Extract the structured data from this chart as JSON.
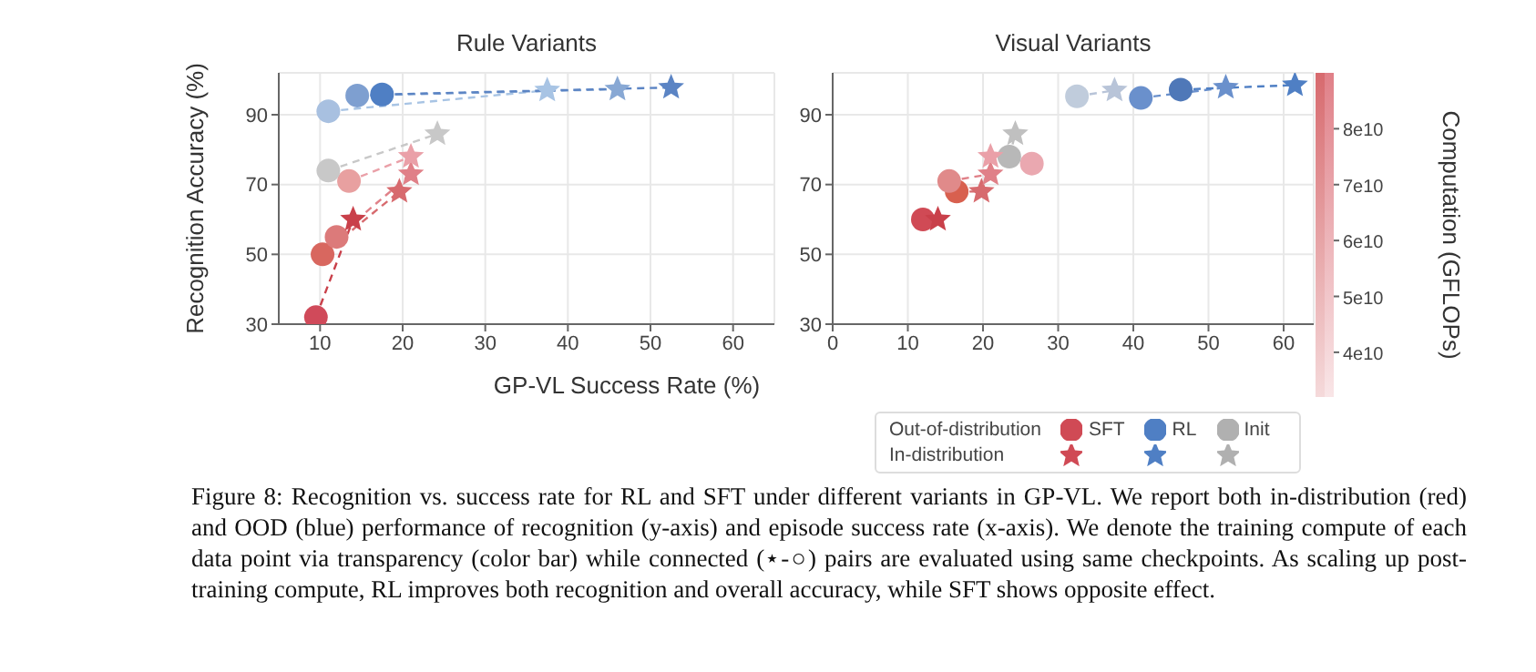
{
  "chart_data": [
    {
      "type": "scatter",
      "title": "Rule Variants",
      "xlabel": "GP-VL Success Rate (%)",
      "ylabel": "Recognition Accuracy (%)",
      "xlim": [
        5,
        65
      ],
      "xticks": [
        10,
        20,
        30,
        40,
        50,
        60
      ],
      "ylim": [
        30,
        102
      ],
      "yticks": [
        30,
        50,
        70,
        90
      ],
      "grid": true,
      "line_style": "dashed",
      "series": [
        {
          "type": "line",
          "color": "#c9404a",
          "x": [
            9.5,
            14
          ],
          "values": [
            32,
            60
          ]
        },
        {
          "type": "line",
          "color": "#d76a6e",
          "x": [
            10.3,
            19.6
          ],
          "values": [
            50,
            68
          ]
        },
        {
          "type": "line",
          "color": "#e08088",
          "x": [
            12,
            21
          ],
          "values": [
            55,
            73
          ]
        },
        {
          "type": "line",
          "color": "#eaa0a8",
          "x": [
            13.5,
            21
          ],
          "values": [
            71,
            78
          ]
        },
        {
          "type": "line",
          "color": "#a8c4e4",
          "x": [
            11,
            37.5
          ],
          "values": [
            91,
            97
          ]
        },
        {
          "type": "line",
          "color": "#88a8d4",
          "x": [
            14.5,
            46
          ],
          "values": [
            95.5,
            97.3
          ]
        },
        {
          "type": "line",
          "color": "#5b84c4",
          "x": [
            17.5,
            52.5
          ],
          "values": [
            95.8,
            97.8
          ]
        },
        {
          "type": "line",
          "color": "#c8c8c8",
          "x": [
            11,
            24.2
          ],
          "values": [
            74,
            84.5
          ]
        },
        {
          "color": "#d04a55",
          "marker": "circle",
          "x": [
            9.5,
            10.3,
            12,
            13.5
          ],
          "values": [
            32,
            50,
            55,
            71
          ],
          "colors": [
            "#d04a5a",
            "#d8675f",
            "#dc7a7a",
            "#e8a0a0"
          ]
        },
        {
          "color": "#4f7fc4",
          "marker": "circle",
          "x": [
            11,
            14.5,
            17.5
          ],
          "values": [
            91,
            95.5,
            95.8
          ],
          "colors": [
            "#a8c0e0",
            "#7e9fd0",
            "#4f7fc4"
          ]
        },
        {
          "color": "#b0b0b0",
          "marker": "circle",
          "x": [
            11
          ],
          "values": [
            74
          ],
          "colors": [
            "#c8c8c8"
          ]
        },
        {
          "color": "#d04a55",
          "marker": "star",
          "x": [
            14,
            19.6,
            21,
            21
          ],
          "values": [
            60,
            68,
            73,
            78
          ],
          "colors": [
            "#c9404a",
            "#d76a6e",
            "#e08088",
            "#eaa0a8"
          ]
        },
        {
          "color": "#4f7fc4",
          "marker": "star",
          "x": [
            37.5,
            46,
            52.5
          ],
          "values": [
            97,
            97.3,
            97.8
          ],
          "colors": [
            "#a8c4e4",
            "#88a8d4",
            "#5b84c4"
          ]
        },
        {
          "color": "#b0b0b0",
          "marker": "star",
          "x": [
            24.2
          ],
          "values": [
            84.5
          ],
          "colors": [
            "#c8c8c8"
          ]
        }
      ]
    },
    {
      "type": "scatter",
      "title": "Visual Variants",
      "xlim": [
        0,
        64
      ],
      "xticks": [
        0,
        10,
        20,
        30,
        40,
        50,
        60
      ],
      "ylim": [
        30,
        102
      ],
      "yticks": [
        30,
        50,
        70,
        90
      ],
      "grid": true,
      "line_style": "dashed",
      "legend": "bottom right",
      "clabel": "Computation (GFLOPs)",
      "clim": [
        32000000000,
        90000000000
      ],
      "cticks": [
        {
          "value": 40000000000,
          "label": "4e10"
        },
        {
          "value": 50000000000,
          "label": "5e10"
        },
        {
          "value": 60000000000,
          "label": "6e10"
        },
        {
          "value": 70000000000,
          "label": "7e10"
        },
        {
          "value": 80000000000,
          "label": "8e10"
        }
      ],
      "series": [
        {
          "type": "line",
          "color": "#d76a6e",
          "x": [
            16.5,
            19.8
          ],
          "values": [
            68,
            68
          ]
        },
        {
          "type": "line",
          "color": "#e08088",
          "x": [
            15.5,
            21
          ],
          "values": [
            71,
            73
          ]
        },
        {
          "type": "line",
          "color": "#b8c4d8",
          "x": [
            32.5,
            37.5
          ],
          "values": [
            95.3,
            97
          ]
        },
        {
          "type": "line",
          "color": "#6a90cc",
          "x": [
            41,
            52.3
          ],
          "values": [
            94.8,
            97.8
          ]
        },
        {
          "type": "line",
          "color": "#4f7fc4",
          "x": [
            46.3,
            61.5
          ],
          "values": [
            97.2,
            98.5
          ]
        },
        {
          "type": "line",
          "color": "#c0c0c0",
          "x": [
            23.5,
            24.3
          ],
          "values": [
            78,
            84.5
          ]
        },
        {
          "name": "SFT",
          "color": "#d04a55",
          "marker": "circle",
          "x": [
            12,
            16.5,
            15.5,
            26.5
          ],
          "values": [
            60,
            68,
            71,
            76
          ],
          "colors": [
            "#d04a55",
            "#d8604f",
            "#e08a8a",
            "#eaa8b0"
          ]
        },
        {
          "name": "RL",
          "color": "#4f7fc4",
          "marker": "circle",
          "x": [
            32.5,
            41,
            46.3
          ],
          "values": [
            95.3,
            94.8,
            97.2
          ],
          "colors": [
            "#c0ccdc",
            "#6a90cc",
            "#4f78b8"
          ]
        },
        {
          "name": "Init",
          "color": "#b0b0b0",
          "marker": "circle",
          "x": [
            23.5
          ],
          "values": [
            78
          ],
          "colors": [
            "#b8b8b8"
          ]
        },
        {
          "color": "#d04a55",
          "marker": "star",
          "x": [
            14,
            19.8,
            21,
            21
          ],
          "values": [
            60,
            68,
            73,
            78
          ],
          "colors": [
            "#c9404a",
            "#d76a6e",
            "#e08088",
            "#eaa0a8"
          ]
        },
        {
          "color": "#4f7fc4",
          "marker": "star",
          "x": [
            37.5,
            52.3,
            61.5
          ],
          "values": [
            97,
            97.8,
            98.5
          ],
          "colors": [
            "#b8c4d8",
            "#6a90cc",
            "#4f7fc4"
          ]
        },
        {
          "color": "#b0b0b0",
          "marker": "star",
          "x": [
            24.3
          ],
          "values": [
            84.5
          ],
          "colors": [
            "#c0c0c0"
          ]
        }
      ],
      "annotations": [
        "Out-of-distribution",
        "In-distribution",
        "Figure 8: Recognition vs. success rate for RL and SFT under different variants in GP-VL. We report both in-distribution (red) and OOD (blue) performance of recognition (y-axis) and episode success rate (x-axis). We denote the training compute of each data point via transparency (color bar) while connected (⋆-○) pairs are evaluated using same checkpoints. As scaling up post-training compute, RL improves both recognition and overall accuracy, while SFT shows opposite effect."
      ]
    }
  ]
}
